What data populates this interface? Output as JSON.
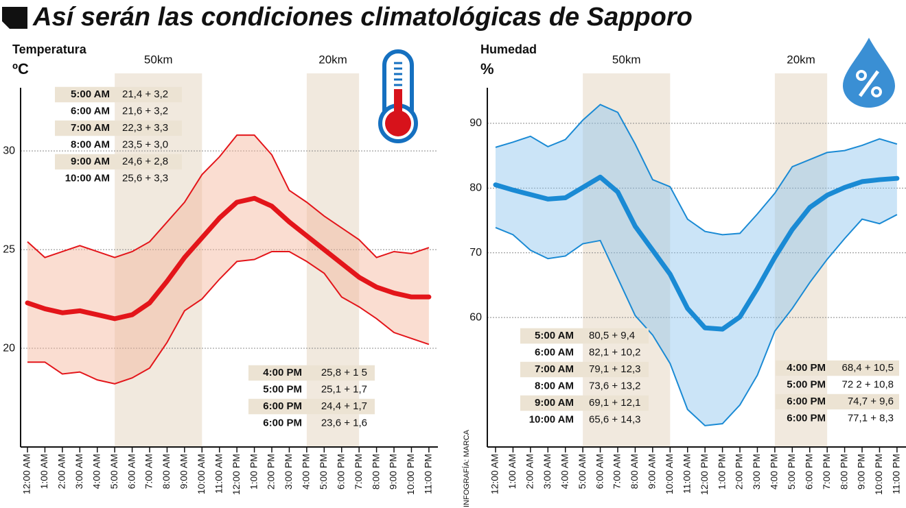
{
  "title": "Así serán las condiciones climatológicas de Sapporo",
  "credit": "INFOGRAFÍA: MARCA",
  "chart_data": [
    {
      "type": "line",
      "ylabel": "Temperatura",
      "yunit": "ºC",
      "categories": [
        "12:00 AM",
        "1:00 AM",
        "2:00 AM",
        "3:00 AM",
        "4:00 AM",
        "5:00 AM",
        "6:00 AM",
        "7:00 AM",
        "8:00 AM",
        "9:00 AM",
        "10:00 AM",
        "11:00 AM",
        "12:00 PM",
        "1:00 PM",
        "2:00 PM",
        "3:00 PM",
        "4:00 PM",
        "5:00 PM",
        "6:00 PM",
        "7:00 PM",
        "8:00 PM",
        "9:00 PM",
        "10:00 PM",
        "11:00 PM"
      ],
      "series": [
        {
          "color": "#e3151a",
          "values": [
            22.3,
            22.0,
            21.8,
            21.9,
            21.7,
            21.5,
            21.7,
            22.3,
            23.4,
            24.6,
            25.6,
            26.6,
            27.4,
            27.6,
            27.2,
            26.4,
            25.7,
            25.0,
            24.3,
            23.6,
            23.1,
            22.8,
            22.6,
            22.6
          ]
        }
      ],
      "range": {
        "color": "#e3151a",
        "fill": "#f5b39a",
        "upper": [
          25.4,
          24.6,
          24.9,
          25.2,
          24.9,
          24.6,
          24.9,
          25.4,
          26.4,
          27.4,
          28.8,
          29.7,
          30.8,
          30.8,
          29.8,
          28.0,
          27.4,
          26.7,
          26.1,
          25.5,
          24.6,
          24.9,
          24.8,
          25.1
        ],
        "lower": [
          19.3,
          19.3,
          18.7,
          18.8,
          18.4,
          18.2,
          18.5,
          19.0,
          20.3,
          21.9,
          22.5,
          23.5,
          24.4,
          24.5,
          24.9,
          24.9,
          24.4,
          23.8,
          22.6,
          22.1,
          21.5,
          20.8,
          20.5,
          20.2
        ]
      },
      "bands": [
        {
          "label": "50km",
          "start": "5:00 AM",
          "end": "10:00 AM"
        },
        {
          "label": "20km",
          "start": "4:00 PM",
          "end": "7:00 PM"
        }
      ],
      "ylim": [
        15,
        33.2
      ],
      "yticks": [
        20,
        25,
        30
      ],
      "grid": true,
      "tables": [
        {
          "rows": [
            [
              "5:00 AM",
              "21,4 + 3,2"
            ],
            [
              "6:00 AM",
              "21,6 + 3,2"
            ],
            [
              "7:00 AM",
              "22,3 + 3,3"
            ],
            [
              "8:00 AM",
              "23,5 + 3,0"
            ],
            [
              "9:00 AM",
              "24,6 + 2,8"
            ],
            [
              "10:00 AM",
              "25,6 + 3,3"
            ]
          ]
        },
        {
          "rows": [
            [
              "4:00 PM",
              "25,8 + 1 5"
            ],
            [
              "5:00 PM",
              "25,1 + 1,7"
            ],
            [
              "6:00 PM",
              "24,4 + 1,7"
            ],
            [
              "6:00 PM",
              "23,6 + 1,6"
            ]
          ]
        }
      ]
    },
    {
      "type": "line",
      "ylabel": "Humedad",
      "yunit": "%",
      "categories": [
        "12:00 AM",
        "1:00 AM",
        "2:00 AM",
        "3:00 AM",
        "4:00 AM",
        "5:00 AM",
        "6:00 AM",
        "7:00 AM",
        "8:00 AM",
        "9:00 AM",
        "10:00 AM",
        "11:00 AM",
        "12:00 PM",
        "1:00 PM",
        "2:00 PM",
        "3:00 PM",
        "4:00 PM",
        "5:00 PM",
        "6:00 PM",
        "7:00 PM",
        "8:00 PM",
        "9:00 PM",
        "10:00 PM",
        "11:00 PM"
      ],
      "series": [
        {
          "color": "#1a8ad4",
          "values": [
            80.5,
            79.7,
            79.0,
            78.3,
            78.5,
            80.1,
            81.7,
            79.4,
            74.1,
            70.4,
            66.7,
            61.4,
            58.4,
            58.2,
            60.1,
            64.5,
            69.3,
            73.6,
            77.0,
            78.9,
            80.1,
            81.0,
            81.3,
            81.5
          ]
        }
      ],
      "range": {
        "color": "#1a8ad4",
        "fill": "#8cc4ee",
        "upper": [
          86.3,
          87.1,
          88.0,
          86.4,
          87.5,
          90.5,
          92.9,
          91.7,
          86.8,
          81.3,
          80.2,
          75.2,
          73.3,
          72.8,
          73.0,
          76.0,
          79.2,
          83.3,
          84.4,
          85.5,
          85.8,
          86.6,
          87.6,
          86.8
        ],
        "lower": [
          73.9,
          72.8,
          70.4,
          69.1,
          69.5,
          71.4,
          71.9,
          66.1,
          60.3,
          57.3,
          52.9,
          45.8,
          43.3,
          43.6,
          46.5,
          51.1,
          57.9,
          61.4,
          65.4,
          69.0,
          72.2,
          75.2,
          74.5,
          75.9
        ]
      },
      "bands": [
        {
          "label": "50km",
          "start": "5:00 AM",
          "end": "10:00 AM"
        },
        {
          "label": "20km",
          "start": "4:00 PM",
          "end": "7:00 PM"
        }
      ],
      "ylim": [
        40,
        95.5
      ],
      "yticks": [
        60,
        70,
        80,
        90
      ],
      "grid": true,
      "tables": [
        {
          "rows": [
            [
              "5:00 AM",
              "80,5 + 9,4"
            ],
            [
              "6:00 AM",
              "82,1 + 10,2"
            ],
            [
              "7:00 AM",
              "79,1 + 12,3"
            ],
            [
              "8:00 AM",
              "73,6 + 13,2"
            ],
            [
              "9:00 AM",
              "69,1 + 12,1"
            ],
            [
              "10:00 AM",
              "65,6 + 14,3"
            ]
          ]
        },
        {
          "rows": [
            [
              "4:00 PM",
              "68,4 + 10,5"
            ],
            [
              "5:00 PM",
              "72 2 + 10,8"
            ],
            [
              "6:00 PM",
              "74,7 + 9,6"
            ],
            [
              "6:00 PM",
              "77,1 + 8,3"
            ]
          ]
        }
      ]
    }
  ]
}
